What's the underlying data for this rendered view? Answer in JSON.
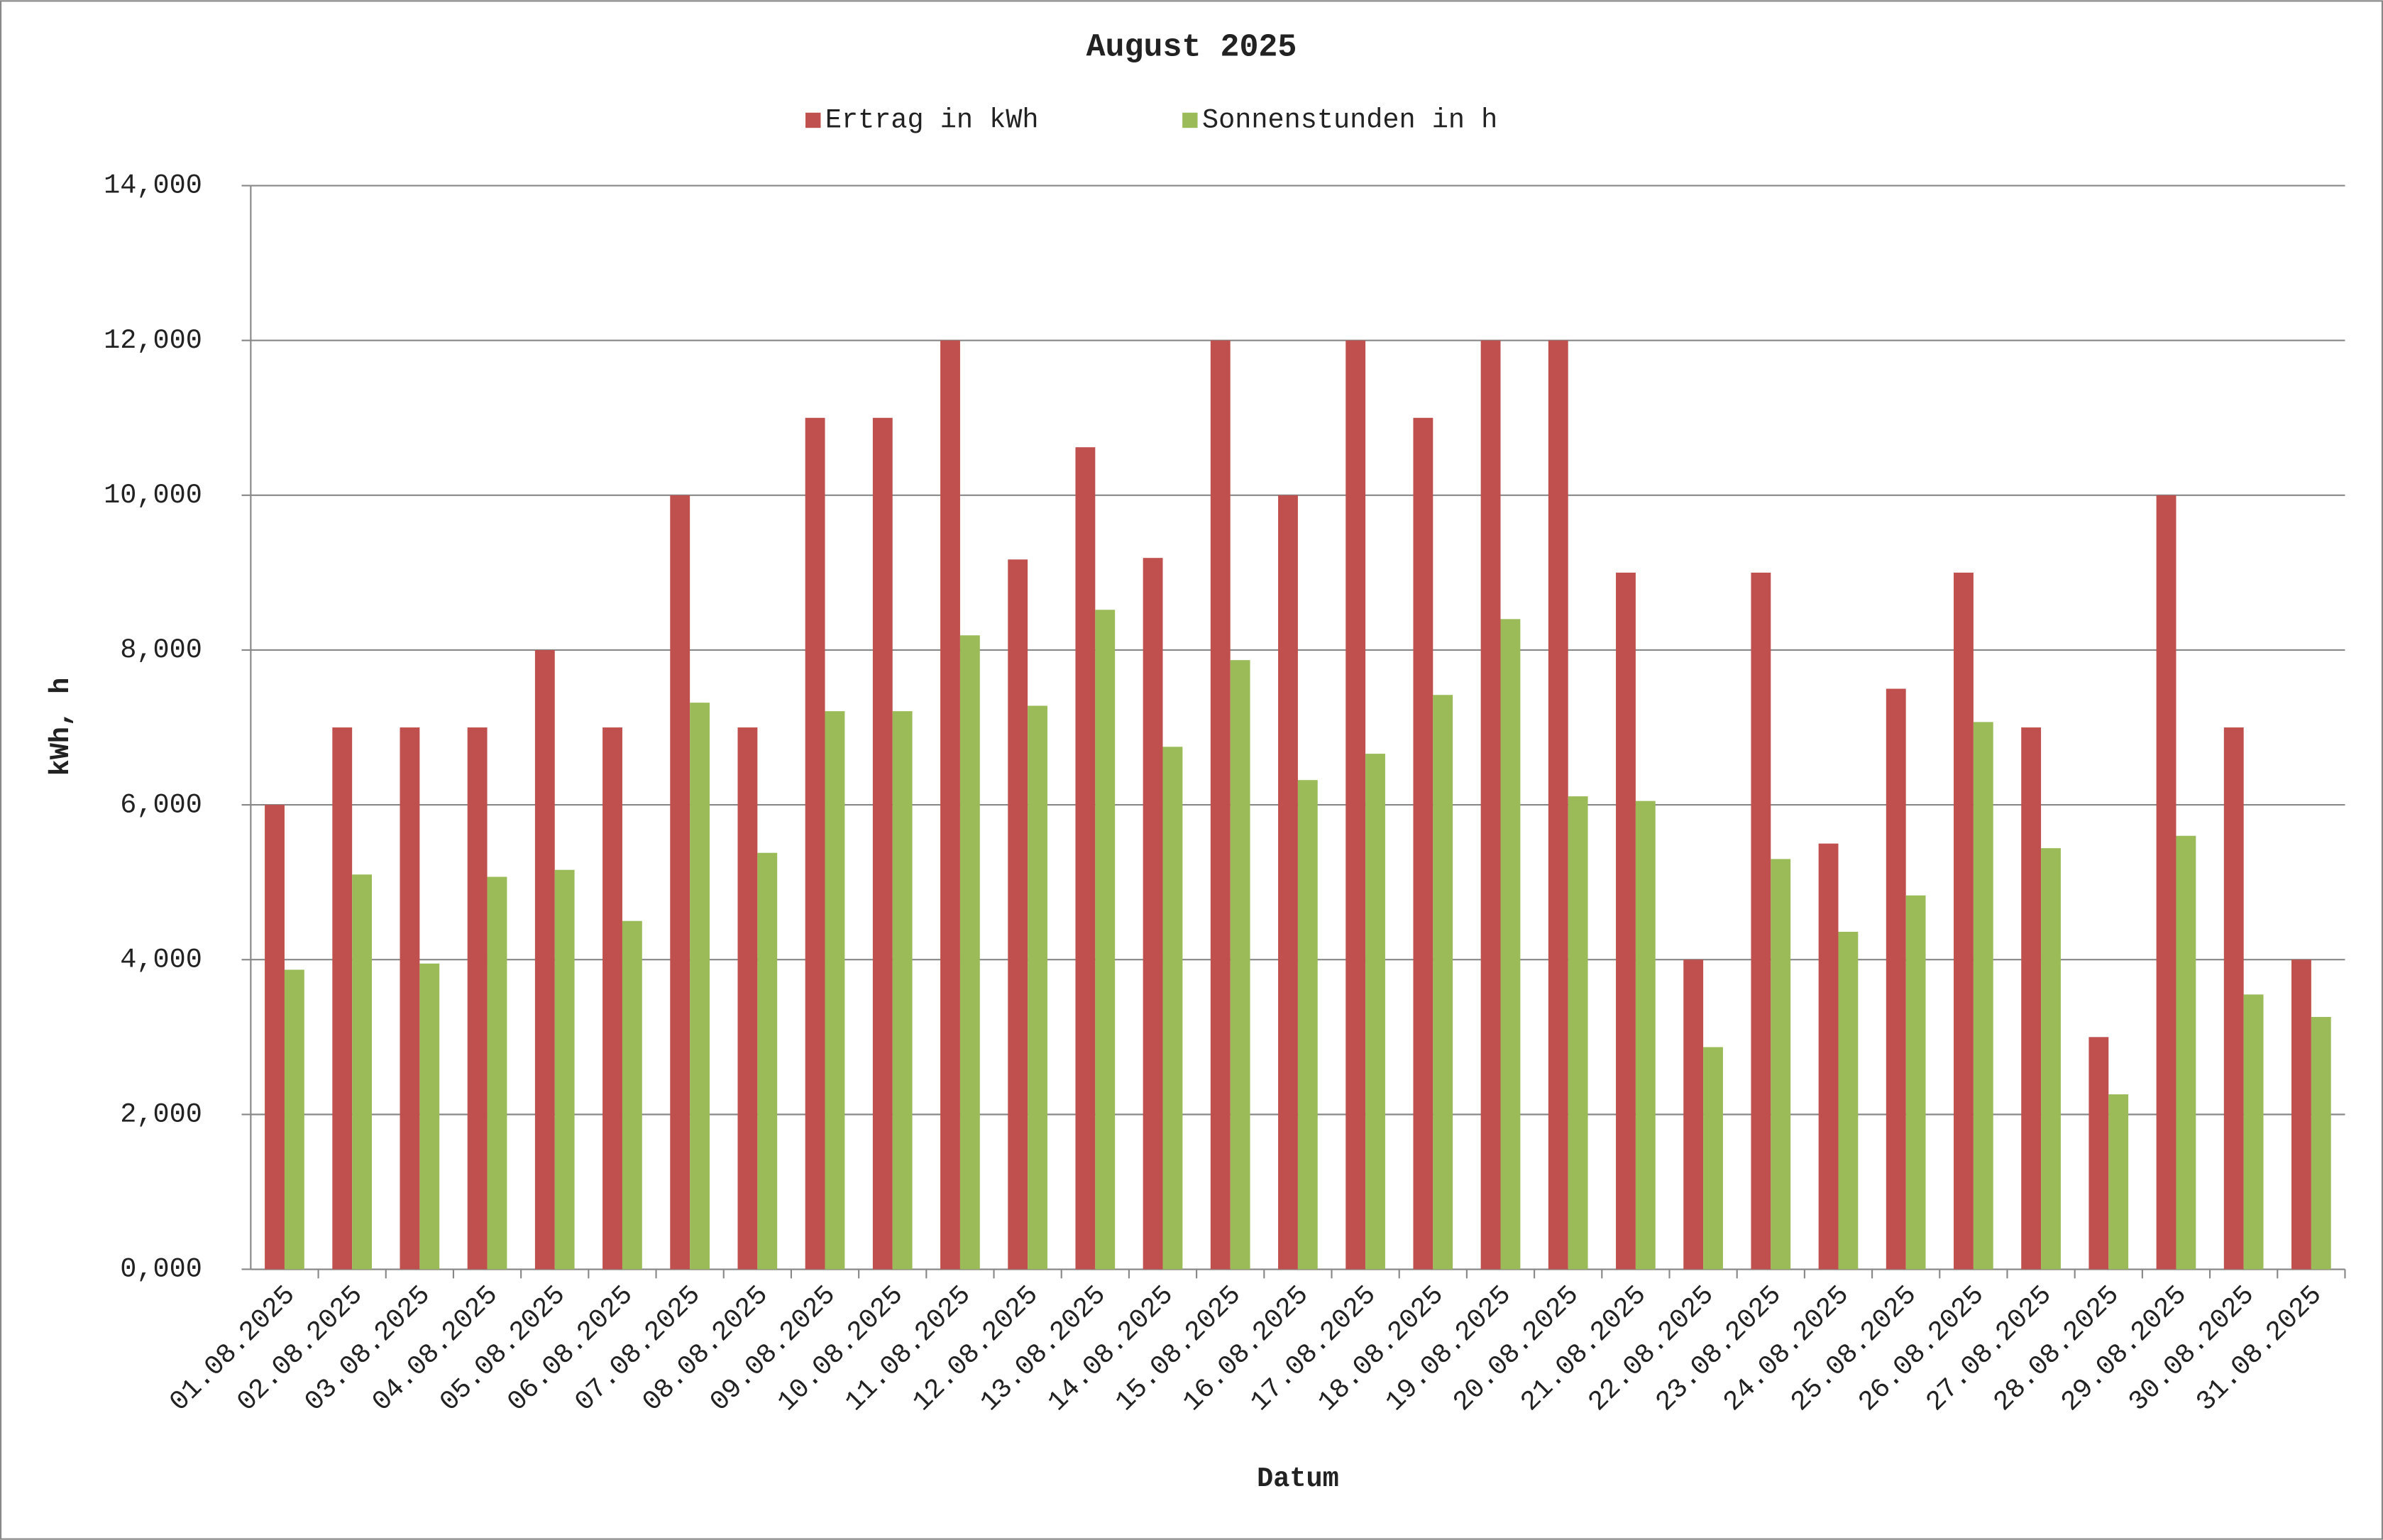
{
  "chart_data": {
    "type": "bar",
    "title": "August 2025",
    "x_label": "Datum",
    "y_label": "kWh, h",
    "categories": [
      "01.08.2025",
      "02.08.2025",
      "03.08.2025",
      "04.08.2025",
      "05.08.2025",
      "06.08.2025",
      "07.08.2025",
      "08.08.2025",
      "09.08.2025",
      "10.08.2025",
      "11.08.2025",
      "12.08.2025",
      "13.08.2025",
      "14.08.2025",
      "15.08.2025",
      "16.08.2025",
      "17.08.2025",
      "18.08.2025",
      "19.08.2025",
      "20.08.2025",
      "21.08.2025",
      "22.08.2025",
      "23.08.2025",
      "24.08.2025",
      "25.08.2025",
      "26.08.2025",
      "27.08.2025",
      "28.08.2025",
      "29.08.2025",
      "30.08.2025",
      "31.08.2025"
    ],
    "series": [
      {
        "name": "Ertrag in kWh",
        "color": "#c0504d",
        "values": [
          6,
          7,
          7,
          7,
          8,
          7,
          10,
          7,
          11,
          11,
          12,
          9.17,
          10.62,
          9.19,
          12,
          10,
          12,
          11,
          12,
          12,
          9,
          4,
          9,
          5.5,
          7.5,
          9,
          7,
          3,
          10,
          7,
          4
        ]
      },
      {
        "name": "Sonnenstunden in h",
        "color": "#9bbb59",
        "values": [
          3.87,
          5.1,
          3.95,
          5.07,
          5.16,
          4.5,
          7.32,
          5.38,
          7.21,
          7.21,
          8.19,
          7.28,
          8.52,
          6.75,
          7.87,
          6.32,
          6.66,
          7.42,
          8.4,
          6.11,
          6.05,
          2.87,
          5.3,
          4.36,
          4.83,
          7.07,
          5.44,
          2.26,
          5.6,
          3.55,
          3.26
        ]
      }
    ],
    "ylim": [
      0,
      14
    ],
    "yticks": [
      {
        "value": 0,
        "label": "0,000"
      },
      {
        "value": 2,
        "label": "2,000"
      },
      {
        "value": 4,
        "label": "4,000"
      },
      {
        "value": 6,
        "label": "6,000"
      },
      {
        "value": 8,
        "label": "8,000"
      },
      {
        "value": 10,
        "label": "10,000"
      },
      {
        "value": 12,
        "label": "12,000"
      },
      {
        "value": 14,
        "label": "14,000"
      }
    ],
    "grid": true,
    "legend": "top"
  }
}
